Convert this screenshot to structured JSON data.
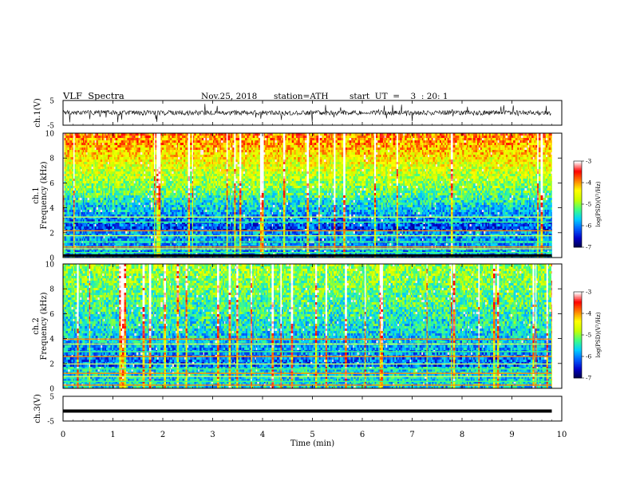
{
  "header": {
    "title": "VLF  Spectra",
    "date": "Nov.25, 2018",
    "station": "station=ATH",
    "start_ut": "start  UT  =    3  : 20: 1"
  },
  "chart_data": [
    {
      "type": "line",
      "name": "ch1-waveform",
      "ylabel": "ch.1(V)",
      "ylim": [
        -5,
        5
      ],
      "yticks": [
        "5",
        "-5"
      ],
      "xlim": [
        0,
        10
      ],
      "x_extent_min": 9.8,
      "color": "#000000"
    },
    {
      "type": "heatmap",
      "name": "ch1-spectrogram",
      "ylabel": "Frequency  (kHz)",
      "channel_label": "ch.1",
      "ylim": [
        0,
        10
      ],
      "yticks": [
        "0",
        "2",
        "4",
        "6",
        "8",
        "10"
      ],
      "xlim": [
        0,
        10
      ],
      "colorbar": {
        "label": "log(PSD)(V²/Hz)",
        "range": [
          -7,
          -3
        ],
        "ticks": [
          "-3",
          "-4",
          "-5",
          "-6",
          "-7"
        ]
      }
    },
    {
      "type": "heatmap",
      "name": "ch2-spectrogram",
      "ylabel": "Frequency  (kHz)",
      "channel_label": "ch.2",
      "ylim": [
        0,
        10
      ],
      "yticks": [
        "0",
        "2",
        "4",
        "6",
        "8",
        "10"
      ],
      "xlim": [
        0,
        10
      ],
      "colorbar": {
        "label": "log(PSD)(V²/Hz)",
        "range": [
          -7,
          -3
        ],
        "ticks": [
          "-3",
          "-4",
          "-5",
          "-6",
          "-7"
        ]
      }
    },
    {
      "type": "line",
      "name": "ch3-waveform",
      "ylabel": "ch.3(V)",
      "ylim": [
        -5,
        5
      ],
      "yticks": [
        "5",
        "-5"
      ],
      "xlim": [
        0,
        10
      ],
      "x_extent_min": 9.8,
      "color": "#000000"
    }
  ],
  "xaxis": {
    "label": "Time  (min)",
    "ticks": [
      "0",
      "1",
      "2",
      "3",
      "4",
      "5",
      "6",
      "7",
      "8",
      "9",
      "10"
    ]
  },
  "colors": {
    "colormap": [
      "#000040",
      "#0000c8",
      "#0060ff",
      "#00d0ff",
      "#40ff80",
      "#c8ff00",
      "#ffff00",
      "#ff8000",
      "#ff0000",
      "#ffffff"
    ]
  }
}
